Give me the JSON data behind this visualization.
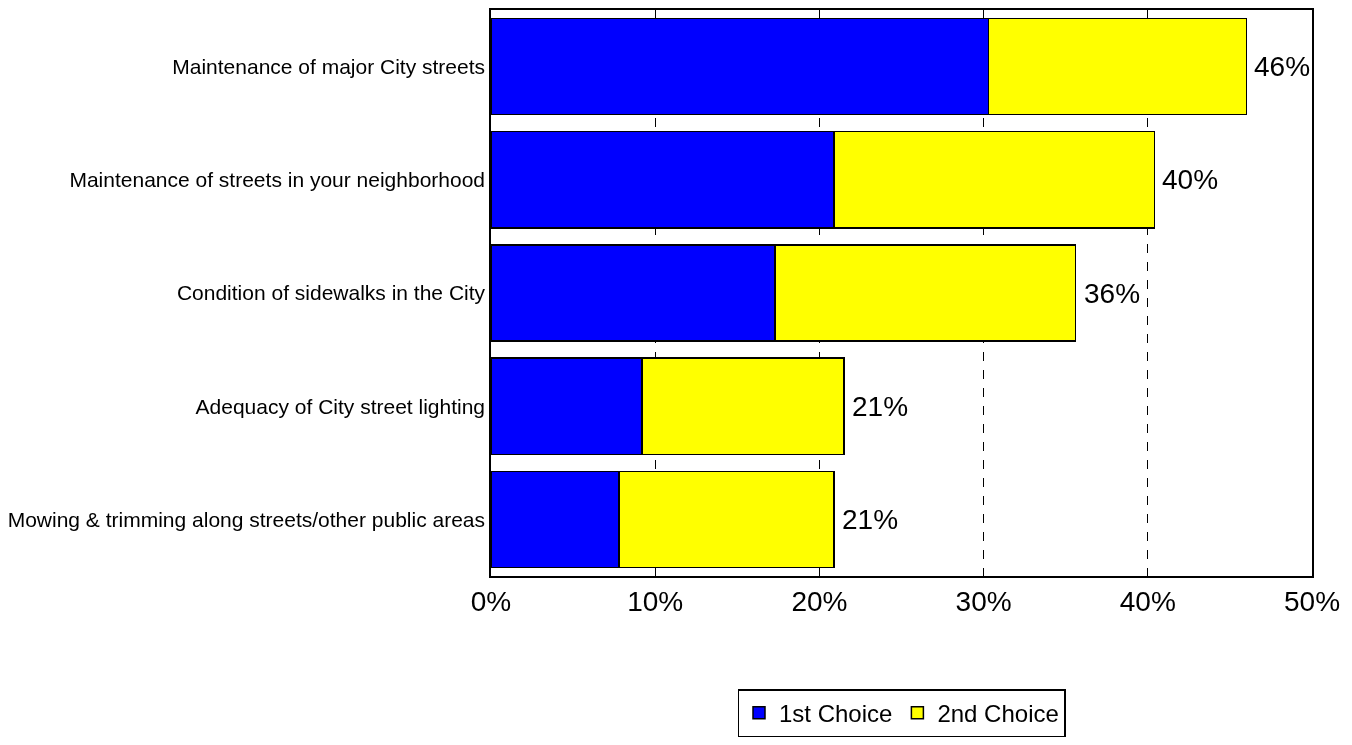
{
  "chart_data": {
    "type": "bar",
    "orientation": "horizontal",
    "stacked": true,
    "categories": [
      "Maintenance of major City streets",
      "Maintenance of streets in your neighborhood",
      "Condition of sidewalks in the City",
      "Adequacy of City street lighting",
      "Mowing & trimming along streets/other public areas"
    ],
    "series": [
      {
        "name": "1st Choice",
        "color": "#0000ff",
        "values": [
          30.3,
          20.9,
          17.3,
          9.2,
          7.8
        ]
      },
      {
        "name": "2nd Choice",
        "color": "#ffff00",
        "values": [
          15.7,
          19.5,
          18.3,
          12.3,
          13.1
        ]
      }
    ],
    "totals": [
      "46%",
      "40%",
      "36%",
      "21%",
      "21%"
    ],
    "xlim": [
      0,
      50
    ],
    "xticks": [
      {
        "value": 0,
        "label": "0%"
      },
      {
        "value": 10,
        "label": "10%"
      },
      {
        "value": 20,
        "label": "20%"
      },
      {
        "value": 30,
        "label": "30%"
      },
      {
        "value": 40,
        "label": "40%"
      },
      {
        "value": 50,
        "label": "50%"
      }
    ],
    "grid": "x",
    "legend": "bottom"
  }
}
